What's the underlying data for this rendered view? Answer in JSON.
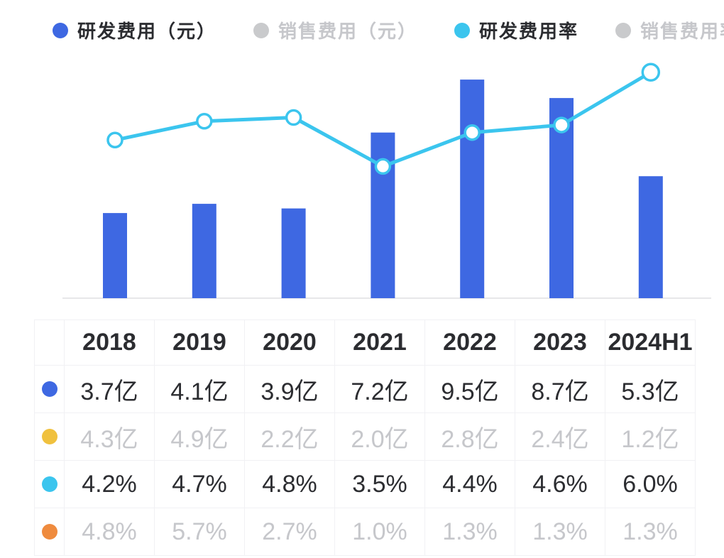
{
  "colors": {
    "bar_blue": "#3e68e2",
    "line_cyan": "#3bc5ee",
    "yellow": "#f0c13e",
    "orange": "#ef8b3e",
    "disabled_dot_gray": "#c9cacc",
    "text_dark": "#2b2c30",
    "text_gray": "#c6c7cb",
    "axis_line": "#e7e7e9",
    "marker_fill": "#ffffff"
  },
  "legend": {
    "items": [
      {
        "id": "rd-expense",
        "label": "研发费用（元）",
        "color": "#3e68e2",
        "active": true
      },
      {
        "id": "sales-expense",
        "label": "销售费用（元）",
        "color": "#c9cacc",
        "active": false
      },
      {
        "id": "rd-expense-ratio",
        "label": "研发费用率",
        "color": "#3bc5ee",
        "active": true
      },
      {
        "id": "sales-expense-ratio",
        "label": "销售费用率",
        "color": "#c9cacc",
        "active": false
      }
    ]
  },
  "chart_data": {
    "type": "bar+line combo",
    "categories": [
      "2018",
      "2019",
      "2020",
      "2021",
      "2022",
      "2023",
      "2024H1"
    ],
    "series": [
      {
        "id": "rd-expense",
        "name": "研发费用（元）",
        "type": "bar",
        "unit": "亿",
        "visible": true,
        "color": "#3e68e2",
        "values": [
          3.7,
          4.1,
          3.9,
          7.2,
          9.5,
          8.7,
          5.3
        ]
      },
      {
        "id": "rd-expense-ratio",
        "name": "研发费用率",
        "type": "line",
        "unit": "%",
        "visible": true,
        "color": "#3bc5ee",
        "values": [
          4.2,
          4.7,
          4.8,
          3.5,
          4.4,
          4.6,
          6.0
        ]
      },
      {
        "id": "sales-expense",
        "name": "销售费用（元）",
        "type": "bar",
        "unit": "亿",
        "visible": false,
        "color": "#f0c13e",
        "values": [
          4.3,
          4.9,
          2.2,
          2.0,
          2.8,
          2.4,
          1.2
        ]
      },
      {
        "id": "sales-expense-ratio",
        "name": "销售费用率",
        "type": "line",
        "unit": "%",
        "visible": false,
        "color": "#ef8b3e",
        "values": [
          4.8,
          5.7,
          2.7,
          1.0,
          1.3,
          1.3,
          1.3
        ]
      }
    ],
    "bar_axis_range": [
      0,
      10.8
    ],
    "line_axis_range": [
      0,
      6.6
    ],
    "grid": false,
    "axis_labels_shown": false,
    "legend_position": "top"
  },
  "table": {
    "header": [
      "",
      "2018",
      "2019",
      "2020",
      "2021",
      "2022",
      "2023",
      "2024H1"
    ],
    "rows": [
      {
        "id": "rd-expense",
        "dot_color": "#3e68e2",
        "active": true,
        "cells": [
          "3.7亿",
          "4.1亿",
          "3.9亿",
          "7.2亿",
          "9.5亿",
          "8.7亿",
          "5.3亿"
        ]
      },
      {
        "id": "sales-expense",
        "dot_color": "#f0c13e",
        "active": false,
        "cells": [
          "4.3亿",
          "4.9亿",
          "2.2亿",
          "2.0亿",
          "2.8亿",
          "2.4亿",
          "1.2亿"
        ]
      },
      {
        "id": "rd-expense-ratio",
        "dot_color": "#3bc5ee",
        "active": true,
        "cells": [
          "4.2%",
          "4.7%",
          "4.8%",
          "3.5%",
          "4.4%",
          "4.6%",
          "6.0%"
        ]
      },
      {
        "id": "sales-expense-ratio",
        "dot_color": "#ef8b3e",
        "active": false,
        "cells": [
          "4.8%",
          "5.7%",
          "2.7%",
          "1.0%",
          "1.3%",
          "1.3%",
          "1.3%"
        ]
      }
    ]
  }
}
